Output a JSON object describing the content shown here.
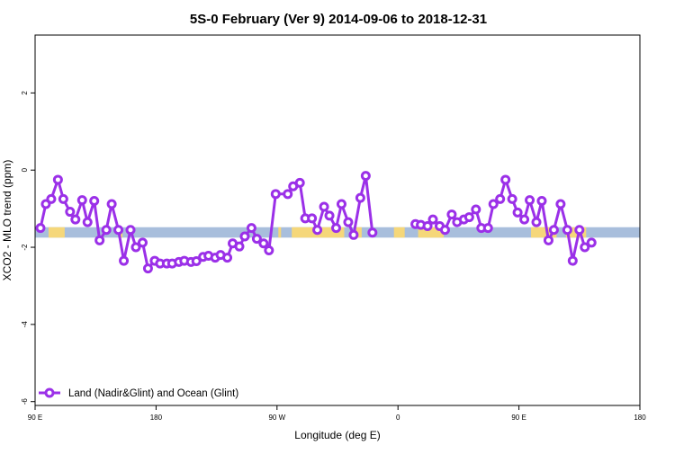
{
  "chart_data": {
    "type": "line",
    "title": "5S-0 February (Ver 9)   2014-09-06 to 2018-12-31",
    "xlabel": "Longitude (deg E)",
    "ylabel": "XCO2 - MLO trend (ppm)",
    "xlim": [
      90,
      540
    ],
    "ylim": [
      -6.1,
      3.5
    ],
    "x_ticks": [
      {
        "value": 90,
        "label": "90 E"
      },
      {
        "value": 180,
        "label": "180"
      },
      {
        "value": 270,
        "label": "90 W"
      },
      {
        "value": 360,
        "label": "0"
      },
      {
        "value": 450,
        "label": "90 E"
      },
      {
        "value": 540,
        "label": "180"
      }
    ],
    "y_ticks": [
      {
        "value": 2,
        "label": "2"
      },
      {
        "value": 0,
        "label": "0"
      },
      {
        "value": -2,
        "label": "-2"
      },
      {
        "value": -4,
        "label": "-4"
      },
      {
        "value": -6,
        "label": "-6"
      }
    ],
    "band": {
      "y_min": -1.75,
      "y_max": -1.48,
      "ocean_color": "#a8bedc",
      "land_color": "#f5d77a"
    },
    "land_ranges": [
      [
        100,
        112
      ],
      [
        152,
        155
      ],
      [
        271,
        273
      ],
      [
        281,
        320
      ],
      [
        329,
        333
      ],
      [
        357,
        365
      ],
      [
        375,
        394
      ],
      [
        459,
        478
      ],
      [
        485,
        500
      ]
    ],
    "legend": {
      "label": "Land (Nadir&Glint) and Ocean (Glint)",
      "position": "bottom-left"
    },
    "series": [
      {
        "name": "Land (Nadir&Glint) and Ocean (Glint)",
        "color": "#9b30e8",
        "segments": [
          [
            [
              94,
              -1.5
            ],
            [
              98,
              -0.88
            ],
            [
              102,
              -0.75
            ],
            [
              107,
              -0.25
            ],
            [
              111,
              -0.75
            ],
            [
              116,
              -1.08
            ],
            [
              120,
              -1.28
            ],
            [
              125,
              -0.78
            ],
            [
              129,
              -1.35
            ],
            [
              134,
              -0.8
            ],
            [
              138,
              -1.82
            ],
            [
              143,
              -1.55
            ],
            [
              147,
              -0.88
            ],
            [
              152,
              -1.55
            ],
            [
              156,
              -2.35
            ],
            [
              161,
              -1.55
            ],
            [
              165,
              -2.0
            ],
            [
              170,
              -1.88
            ],
            [
              174,
              -2.55
            ],
            [
              179,
              -2.35
            ],
            [
              183,
              -2.42
            ],
            [
              188,
              -2.42
            ],
            [
              192,
              -2.42
            ],
            [
              197,
              -2.38
            ],
            [
              201,
              -2.35
            ],
            [
              206,
              -2.38
            ],
            [
              210,
              -2.36
            ],
            [
              215,
              -2.25
            ],
            [
              219,
              -2.22
            ],
            [
              224,
              -2.27
            ],
            [
              228,
              -2.2
            ],
            [
              233,
              -2.27
            ],
            [
              237,
              -1.9
            ],
            [
              242,
              -1.98
            ],
            [
              246,
              -1.72
            ],
            [
              251,
              -1.5
            ],
            [
              255,
              -1.78
            ],
            [
              260,
              -1.9
            ],
            [
              264,
              -2.08
            ],
            [
              269,
              -0.62
            ],
            [
              278,
              -0.62
            ],
            [
              282,
              -0.42
            ],
            [
              287,
              -0.33
            ],
            [
              291,
              -1.25
            ],
            [
              296,
              -1.25
            ],
            [
              300,
              -1.55
            ],
            [
              305,
              -0.95
            ],
            [
              309,
              -1.18
            ],
            [
              314,
              -1.5
            ],
            [
              318,
              -0.88
            ],
            [
              323,
              -1.35
            ],
            [
              327,
              -1.68
            ],
            [
              332,
              -0.72
            ],
            [
              336,
              -0.15
            ],
            [
              341,
              -1.62
            ]
          ],
          [
            [
              373,
              -1.4
            ],
            [
              377,
              -1.42
            ],
            [
              382,
              -1.45
            ],
            [
              386,
              -1.28
            ],
            [
              391,
              -1.45
            ],
            [
              395,
              -1.55
            ],
            [
              400,
              -1.15
            ],
            [
              404,
              -1.35
            ],
            [
              409,
              -1.28
            ],
            [
              413,
              -1.22
            ],
            [
              418,
              -1.02
            ],
            [
              422,
              -1.5
            ],
            [
              427,
              -1.5
            ],
            [
              431,
              -0.88
            ],
            [
              436,
              -0.75
            ],
            [
              440,
              -0.25
            ],
            [
              445,
              -0.75
            ],
            [
              449,
              -1.1
            ],
            [
              454,
              -1.28
            ],
            [
              458,
              -0.78
            ],
            [
              463,
              -1.35
            ],
            [
              467,
              -0.8
            ],
            [
              472,
              -1.82
            ],
            [
              476,
              -1.55
            ],
            [
              481,
              -0.88
            ],
            [
              486,
              -1.55
            ],
            [
              490,
              -2.35
            ],
            [
              495,
              -1.55
            ],
            [
              499,
              -2.0
            ],
            [
              504,
              -1.88
            ]
          ]
        ]
      }
    ]
  }
}
